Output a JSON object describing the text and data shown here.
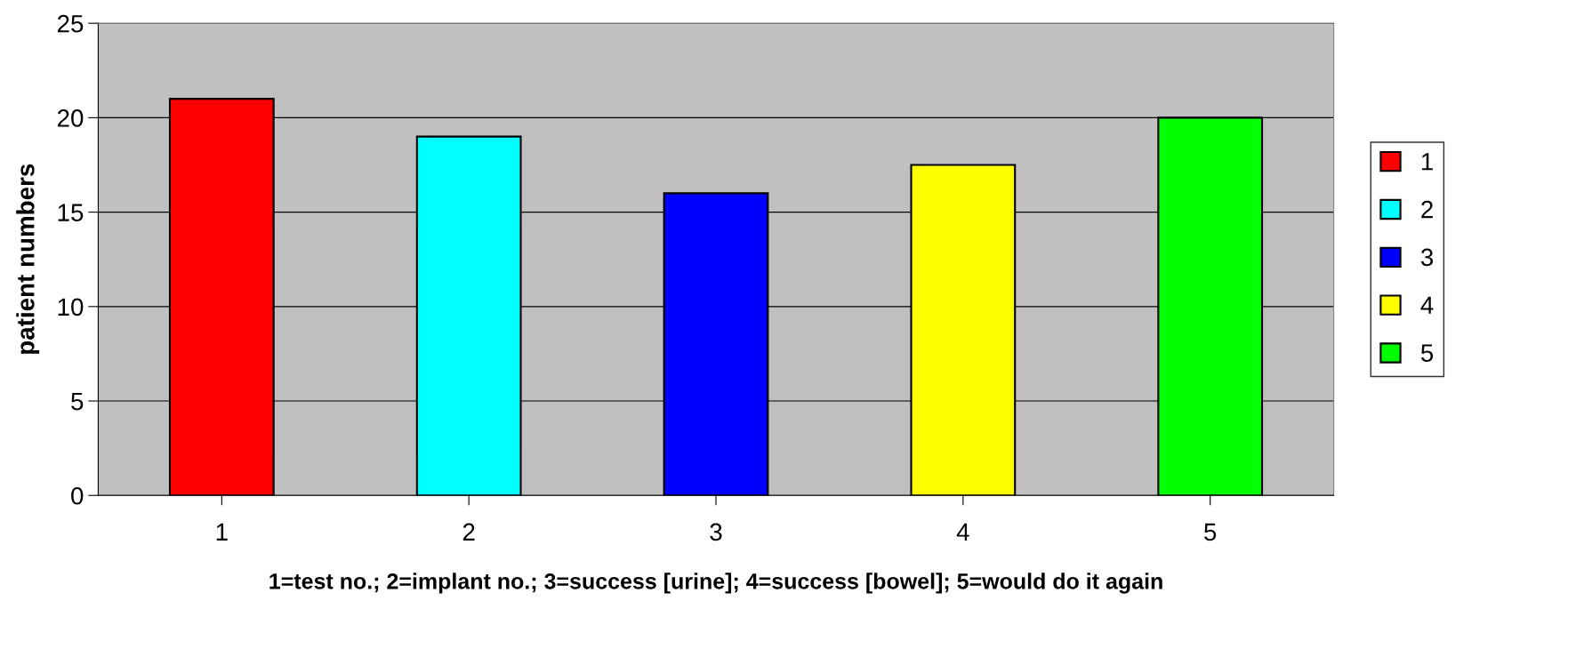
{
  "chart_data": {
    "type": "bar",
    "xlabel": "1=test no.; 2=implant no.; 3=success [urine]; 4=success [bowel]; 5=would do it again",
    "ylabel": "patient numbers",
    "categories": [
      "1",
      "2",
      "3",
      "4",
      "5"
    ],
    "series": [
      {
        "name": "1",
        "color": "#ff0000",
        "values": [
          21,
          null,
          null,
          null,
          null
        ]
      },
      {
        "name": "2",
        "color": "#00ffff",
        "values": [
          null,
          19,
          null,
          null,
          null
        ]
      },
      {
        "name": "3",
        "color": "#0000ff",
        "values": [
          null,
          null,
          16,
          null,
          null
        ]
      },
      {
        "name": "4",
        "color": "#ffff00",
        "values": [
          null,
          null,
          null,
          17.5,
          null
        ]
      },
      {
        "name": "5",
        "color": "#00ff00",
        "values": [
          null,
          null,
          null,
          null,
          20
        ]
      }
    ],
    "ylim": [
      0,
      25
    ],
    "yticks": [
      0,
      5,
      10,
      15,
      20,
      25
    ],
    "grid": "y",
    "legend": "right"
  }
}
